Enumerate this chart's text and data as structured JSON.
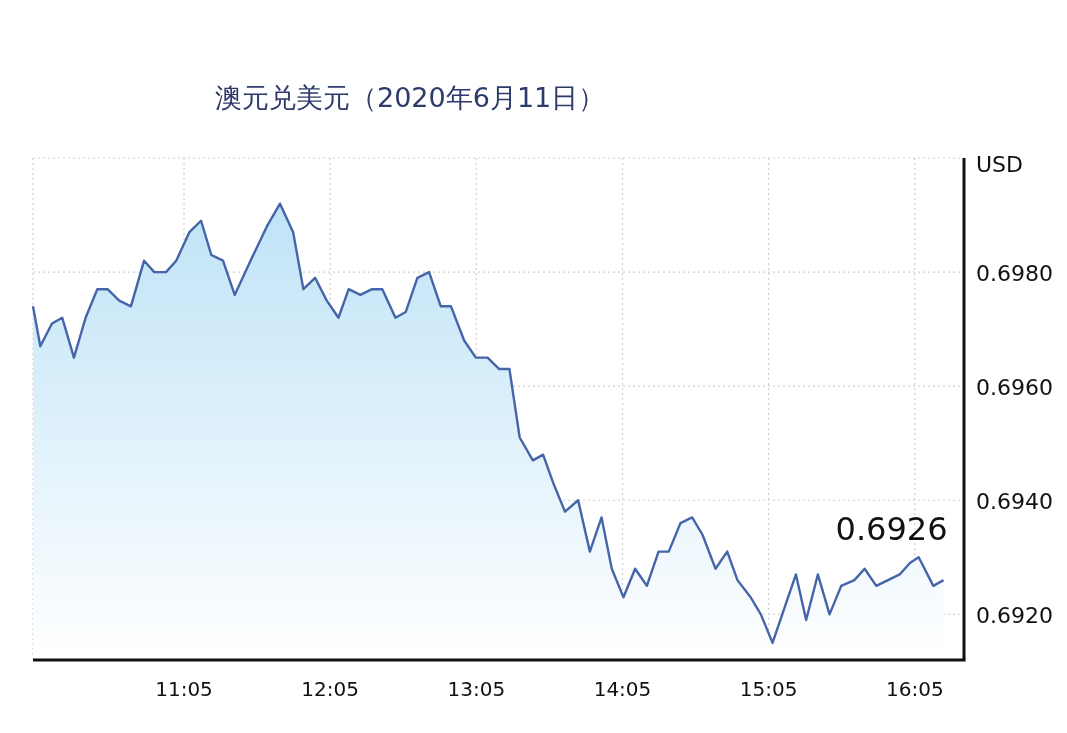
{
  "chart_data": {
    "type": "area",
    "title": "澳元兑美元（2020年6月11日）",
    "ylabel": "USD",
    "color": "#4565a9",
    "x": [
      10.05,
      10.1,
      10.18,
      10.25,
      10.33,
      10.41,
      10.49,
      10.56,
      10.64,
      10.72,
      10.81,
      10.88,
      10.96,
      11.03,
      11.12,
      11.2,
      11.27,
      11.35,
      11.43,
      11.52,
      11.65,
      11.74,
      11.83,
      11.9,
      11.98,
      12.06,
      12.14,
      12.21,
      12.29,
      12.37,
      12.44,
      12.53,
      12.6,
      12.68,
      12.76,
      12.84,
      12.91,
      13.0,
      13.08,
      13.16,
      13.24,
      13.31,
      13.38,
      13.47,
      13.54,
      13.61,
      13.69,
      13.78,
      13.86,
      13.94,
      14.01,
      14.09,
      14.17,
      14.25,
      14.33,
      14.4,
      14.48,
      14.56,
      14.63,
      14.72,
      14.8,
      14.87,
      14.96,
      15.03,
      15.11,
      15.27,
      15.34,
      15.42,
      15.5,
      15.58,
      15.67,
      15.74,
      15.82,
      15.9,
      15.98,
      16.05,
      16.11,
      16.21,
      16.28
    ],
    "values": [
      0.6974,
      0.6967,
      0.6971,
      0.6972,
      0.6965,
      0.6972,
      0.6977,
      0.6977,
      0.6975,
      0.6974,
      0.6982,
      0.698,
      0.698,
      0.6982,
      0.6987,
      0.6989,
      0.6983,
      0.6982,
      0.6976,
      0.6981,
      0.6988,
      0.6992,
      0.6987,
      0.6977,
      0.6979,
      0.6975,
      0.6972,
      0.6977,
      0.6976,
      0.6977,
      0.6977,
      0.6972,
      0.6973,
      0.6979,
      0.698,
      0.6974,
      0.6974,
      0.6968,
      0.6965,
      0.6965,
      0.6963,
      0.6963,
      0.6951,
      0.6947,
      0.6948,
      0.6943,
      0.6938,
      0.694,
      0.6931,
      0.6937,
      0.6928,
      0.6923,
      0.6928,
      0.6925,
      0.6931,
      0.6931,
      0.6936,
      0.6937,
      0.6934,
      0.6928,
      0.6931,
      0.6926,
      0.6923,
      0.692,
      0.6915,
      0.6927,
      0.6919,
      0.6927,
      0.692,
      0.6925,
      0.6926,
      0.6928,
      0.6925,
      0.6926,
      0.6927,
      0.6929,
      0.693,
      0.6925,
      0.6926
    ],
    "xlim": [
      10.05,
      16.42
    ],
    "ylim": [
      0.6912,
      0.7
    ],
    "xticks": [
      {
        "value": 11.0833,
        "label": "11:05"
      },
      {
        "value": 12.0833,
        "label": "12:05"
      },
      {
        "value": 13.0833,
        "label": "13:05"
      },
      {
        "value": 14.0833,
        "label": "14:05"
      },
      {
        "value": 15.0833,
        "label": "15:05"
      },
      {
        "value": 16.0833,
        "label": "16:05"
      }
    ],
    "yticks": [
      {
        "value": 0.692,
        "label": "0.6920"
      },
      {
        "value": 0.694,
        "label": "0.6940"
      },
      {
        "value": 0.696,
        "label": "0.6960"
      },
      {
        "value": 0.698,
        "label": "0.6980"
      },
      {
        "value": 0.7,
        "label": null
      }
    ],
    "grid": true,
    "annotations": [
      {
        "text": "0.6926",
        "x": 16.28,
        "y": 0.6926
      }
    ]
  }
}
